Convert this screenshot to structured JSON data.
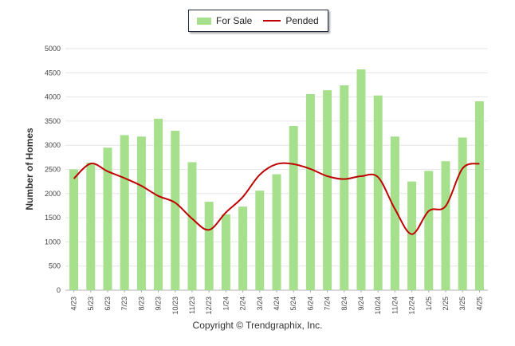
{
  "chart_data": {
    "type": "bar",
    "categories": [
      "4/23",
      "5/23",
      "6/23",
      "7/23",
      "8/23",
      "9/23",
      "10/23",
      "11/23",
      "12/23",
      "1/24",
      "2/24",
      "3/24",
      "4/24",
      "5/24",
      "6/24",
      "7/24",
      "8/24",
      "9/24",
      "10/24",
      "11/24",
      "12/24",
      "1/25",
      "2/25",
      "3/25",
      "4/25"
    ],
    "series": [
      {
        "name": "For Sale",
        "type": "bar",
        "color": "#a6e08c",
        "values": [
          2500,
          2640,
          2950,
          3210,
          3180,
          3550,
          3300,
          2650,
          1830,
          1570,
          1730,
          2060,
          2400,
          3400,
          4060,
          4140,
          4240,
          4570,
          4030,
          3180,
          2250,
          2470,
          2670,
          3160,
          3910
        ]
      },
      {
        "name": "Pended",
        "type": "line",
        "color": "#c00000",
        "values": [
          2310,
          2620,
          2460,
          2320,
          2160,
          1950,
          1810,
          1480,
          1250,
          1610,
          1930,
          2390,
          2610,
          2610,
          2510,
          2360,
          2300,
          2360,
          2340,
          1680,
          1160,
          1640,
          1740,
          2520,
          2620
        ]
      }
    ],
    "title": "",
    "xlabel": "",
    "ylabel": "Number of Homes",
    "ylim": [
      0,
      5000
    ],
    "yticks": [
      0,
      500,
      1000,
      1500,
      2000,
      2500,
      3000,
      3500,
      4000,
      4500,
      5000
    ],
    "grid": true,
    "legend_position": "top-center"
  },
  "legend": {
    "for_sale": "For Sale",
    "pended": "Pended"
  },
  "footer": "Copyright © Trendgraphix, Inc."
}
